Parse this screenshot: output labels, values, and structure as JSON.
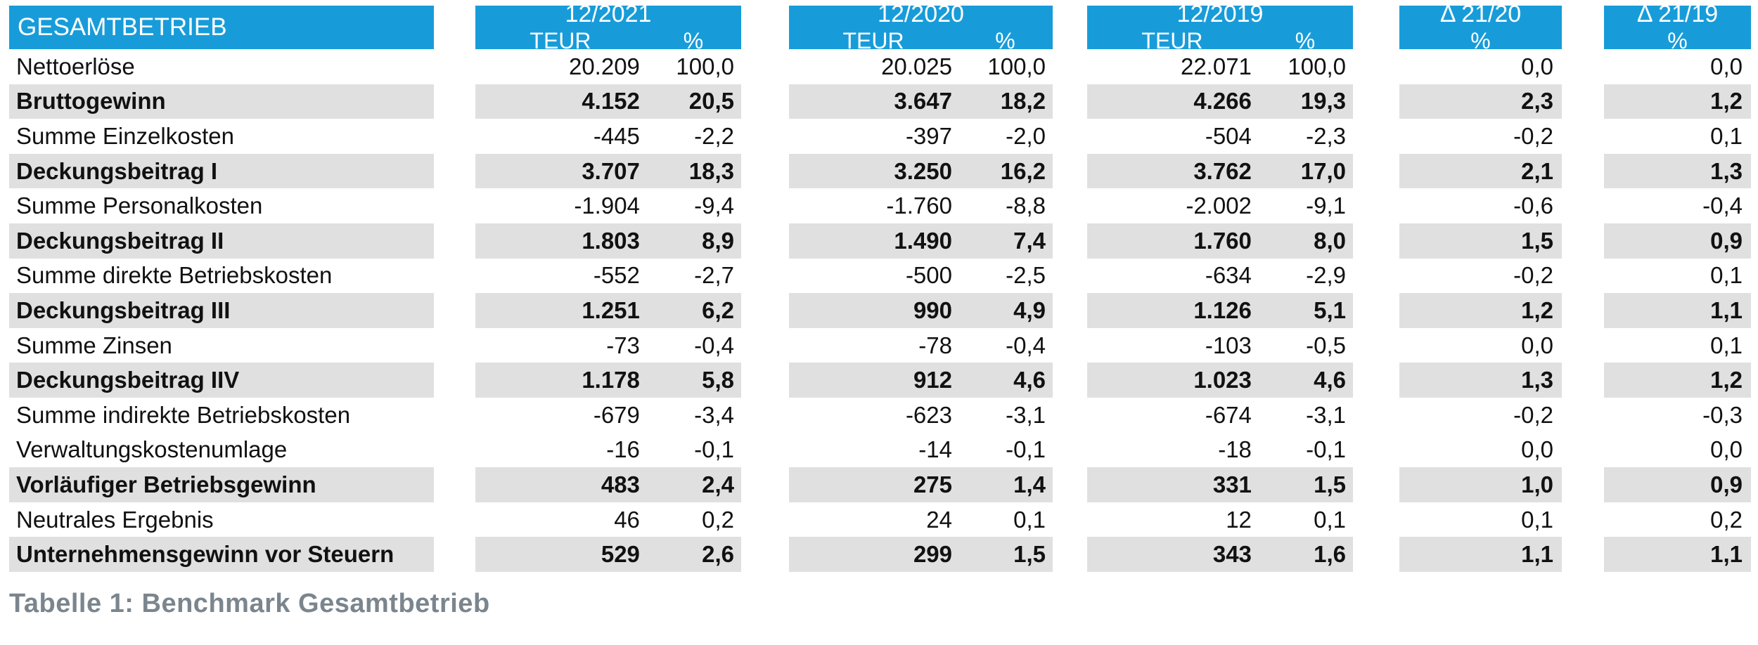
{
  "header": {
    "title": "GESAMTBETRIEB",
    "period_columns": [
      {
        "label": "12/2021",
        "sub_teur": "TEUR",
        "sub_pct": "%"
      },
      {
        "label": "12/2020",
        "sub_teur": "TEUR",
        "sub_pct": "%"
      },
      {
        "label": "12/2019",
        "sub_teur": "TEUR",
        "sub_pct": "%"
      }
    ],
    "delta_columns": [
      {
        "label": "Δ 21/20",
        "sub_pct": "%"
      },
      {
        "label": "Δ 21/19",
        "sub_pct": "%"
      }
    ]
  },
  "rows": [
    {
      "label": "Nettoerlöse",
      "bold": false,
      "periods": [
        [
          "20.209",
          "100,0"
        ],
        [
          "20.025",
          "100,0"
        ],
        [
          "22.071",
          "100,0"
        ]
      ],
      "deltas": [
        "0,0",
        "0,0"
      ]
    },
    {
      "label": "Bruttogewinn",
      "bold": true,
      "periods": [
        [
          "4.152",
          "20,5"
        ],
        [
          "3.647",
          "18,2"
        ],
        [
          "4.266",
          "19,3"
        ]
      ],
      "deltas": [
        "2,3",
        "1,2"
      ]
    },
    {
      "label": "Summe Einzelkosten",
      "bold": false,
      "periods": [
        [
          "-445",
          "-2,2"
        ],
        [
          "-397",
          "-2,0"
        ],
        [
          "-504",
          "-2,3"
        ]
      ],
      "deltas": [
        "-0,2",
        "0,1"
      ]
    },
    {
      "label": "Deckungsbeitrag I",
      "bold": true,
      "periods": [
        [
          "3.707",
          "18,3"
        ],
        [
          "3.250",
          "16,2"
        ],
        [
          "3.762",
          "17,0"
        ]
      ],
      "deltas": [
        "2,1",
        "1,3"
      ]
    },
    {
      "label": "Summe Personalkosten",
      "bold": false,
      "periods": [
        [
          "-1.904",
          "-9,4"
        ],
        [
          "-1.760",
          "-8,8"
        ],
        [
          "-2.002",
          "-9,1"
        ]
      ],
      "deltas": [
        "-0,6",
        "-0,4"
      ]
    },
    {
      "label": "Deckungsbeitrag II",
      "bold": true,
      "periods": [
        [
          "1.803",
          "8,9"
        ],
        [
          "1.490",
          "7,4"
        ],
        [
          "1.760",
          "8,0"
        ]
      ],
      "deltas": [
        "1,5",
        "0,9"
      ]
    },
    {
      "label": "Summe direkte Betriebskosten",
      "bold": false,
      "periods": [
        [
          "-552",
          "-2,7"
        ],
        [
          "-500",
          "-2,5"
        ],
        [
          "-634",
          "-2,9"
        ]
      ],
      "deltas": [
        "-0,2",
        "0,1"
      ]
    },
    {
      "label": "Deckungsbeitrag III",
      "bold": true,
      "periods": [
        [
          "1.251",
          "6,2"
        ],
        [
          "990",
          "4,9"
        ],
        [
          "1.126",
          "5,1"
        ]
      ],
      "deltas": [
        "1,2",
        "1,1"
      ]
    },
    {
      "label": "Summe Zinsen",
      "bold": false,
      "periods": [
        [
          "-73",
          "-0,4"
        ],
        [
          "-78",
          "-0,4"
        ],
        [
          "-103",
          "-0,5"
        ]
      ],
      "deltas": [
        "0,0",
        "0,1"
      ]
    },
    {
      "label": "Deckungsbeitrag IIV",
      "bold": true,
      "periods": [
        [
          "1.178",
          "5,8"
        ],
        [
          "912",
          "4,6"
        ],
        [
          "1.023",
          "4,6"
        ]
      ],
      "deltas": [
        "1,3",
        "1,2"
      ]
    },
    {
      "label": "Summe indirekte Betriebskosten",
      "bold": false,
      "periods": [
        [
          "-679",
          "-3,4"
        ],
        [
          "-623",
          "-3,1"
        ],
        [
          "-674",
          "-3,1"
        ]
      ],
      "deltas": [
        "-0,2",
        "-0,3"
      ]
    },
    {
      "label": "Verwaltungskostenumlage",
      "bold": false,
      "periods": [
        [
          "-16",
          "-0,1"
        ],
        [
          "-14",
          "-0,1"
        ],
        [
          "-18",
          "-0,1"
        ]
      ],
      "deltas": [
        "0,0",
        "0,0"
      ]
    },
    {
      "label": "Vorläufiger Betriebsgewinn",
      "bold": true,
      "periods": [
        [
          "483",
          "2,4"
        ],
        [
          "275",
          "1,4"
        ],
        [
          "331",
          "1,5"
        ]
      ],
      "deltas": [
        "1,0",
        "0,9"
      ]
    },
    {
      "label": "Neutrales Ergebnis",
      "bold": false,
      "periods": [
        [
          "46",
          "0,2"
        ],
        [
          "24",
          "0,1"
        ],
        [
          "12",
          "0,1"
        ]
      ],
      "deltas": [
        "0,1",
        "0,2"
      ]
    },
    {
      "label": "Unternehmensgewinn vor Steuern",
      "bold": true,
      "periods": [
        [
          "529",
          "2,6"
        ],
        [
          "299",
          "1,5"
        ],
        [
          "343",
          "1,6"
        ]
      ],
      "deltas": [
        "1,1",
        "1,1"
      ]
    }
  ],
  "caption": "Tabelle 1: Benchmark Gesamtbetrieb",
  "colors": {
    "header_blue": "#189CD9",
    "stripe_gray": "#E0E0E0",
    "caption_gray": "#7B858D"
  }
}
